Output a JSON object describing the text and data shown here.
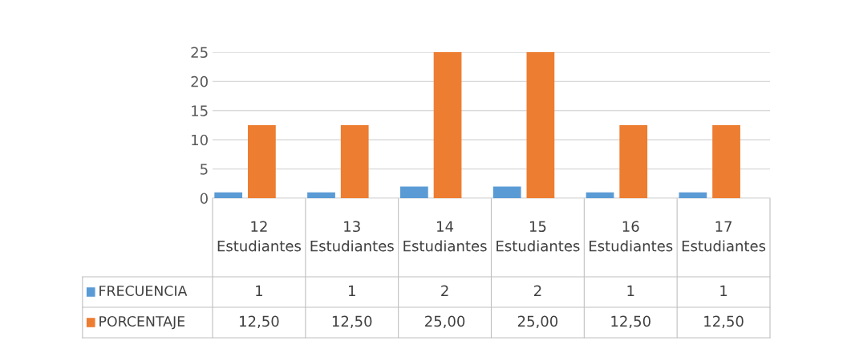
{
  "chart_data": {
    "type": "bar",
    "categories": [
      "12 Estudiantes",
      "13 Estudiantes",
      "14 Estudiantes",
      "15 Estudiantes",
      "16 Estudiantes",
      "17 Estudiantes"
    ],
    "series": [
      {
        "name": "FRECUENCIA",
        "color": "#5b9bd5",
        "values": [
          1,
          1,
          2,
          2,
          1,
          1
        ],
        "value_labels": [
          "1",
          "1",
          "2",
          "2",
          "1",
          "1"
        ]
      },
      {
        "name": "PORCENTAJE",
        "color": "#ed7d31",
        "values": [
          12.5,
          12.5,
          25,
          25,
          12.5,
          12.5
        ],
        "value_labels": [
          "12,50",
          "12,50",
          "25,00",
          "25,00",
          "12,50",
          "12,50"
        ]
      }
    ],
    "ylim": [
      0,
      25
    ],
    "legend": "bottom left",
    "yticks": [
      0,
      5,
      10,
      15,
      20,
      25
    ],
    "grid": "y"
  }
}
